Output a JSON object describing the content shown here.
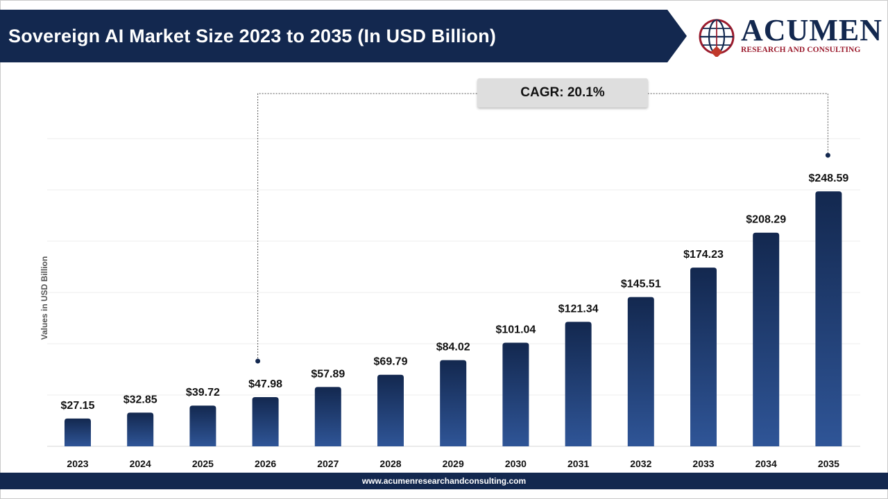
{
  "header": {
    "title": "Sovereign AI Market Size 2023 to 2035 (In USD Billion)"
  },
  "logo": {
    "wordmark": "ACUMEN",
    "subtitle": "RESEARCH AND CONSULTING"
  },
  "annotation": {
    "cagr_label": "CAGR: 20.1%"
  },
  "footer": {
    "url": "www.acumenresearchandconsulting.com"
  },
  "colors": {
    "brand_navy": "#13284f",
    "bar_top": "#13284f",
    "bar_bottom": "#2f5597",
    "logo_red": "#9b1b2d"
  },
  "chart_data": {
    "type": "bar",
    "ylabel": "Values in USD Billion",
    "xlabel": "",
    "categories": [
      "2023",
      "2024",
      "2025",
      "2026",
      "2027",
      "2028",
      "2029",
      "2030",
      "2031",
      "2032",
      "2033",
      "2034",
      "2035"
    ],
    "values": [
      27.15,
      32.85,
      39.72,
      47.98,
      57.89,
      69.79,
      84.02,
      101.04,
      121.34,
      145.51,
      174.23,
      208.29,
      248.59
    ],
    "data_labels": [
      "$27.15",
      "$32.85",
      "$39.72",
      "$47.98",
      "$57.89",
      "$69.79",
      "$84.02",
      "$101.04",
      "$121.34",
      "$145.51",
      "$174.23",
      "$208.29",
      "$248.59"
    ],
    "ylim": [
      0,
      300
    ],
    "grid": true,
    "legend": "none",
    "cagr_bracket": {
      "from": "2026",
      "to": "2035"
    }
  }
}
